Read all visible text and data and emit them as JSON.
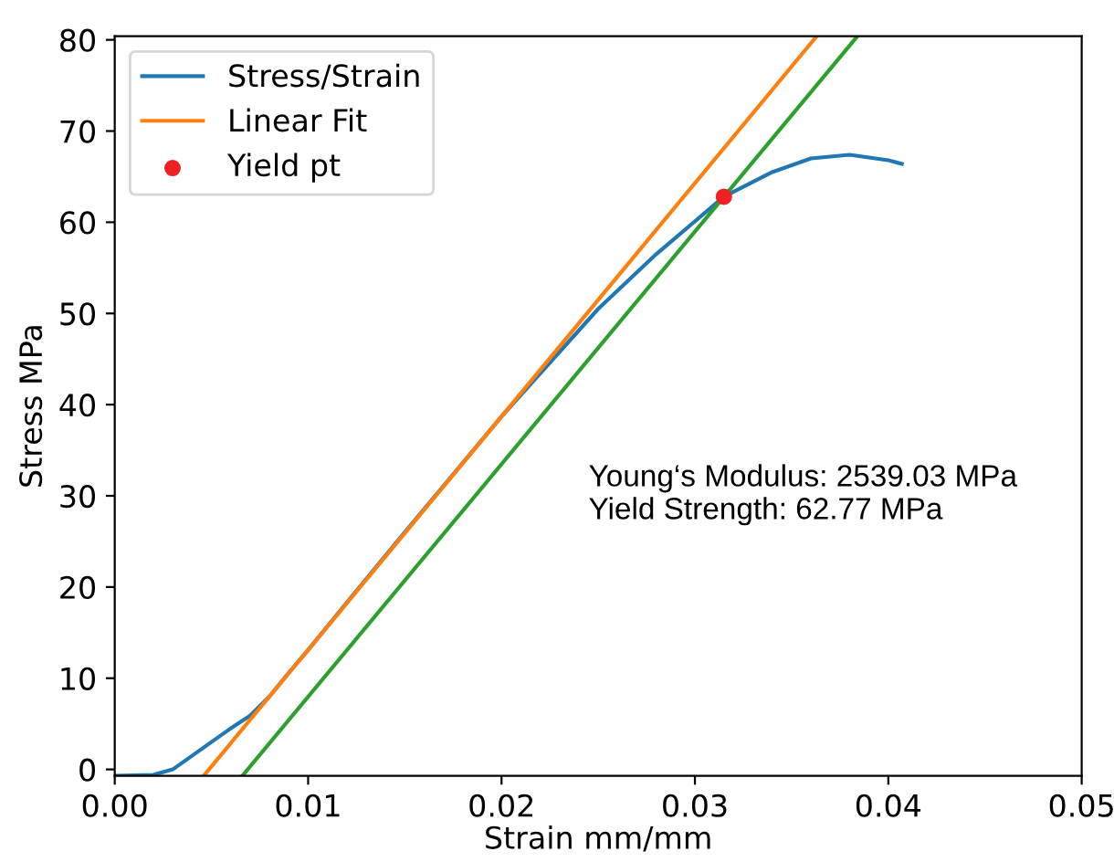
{
  "chart_data": {
    "type": "line",
    "xlabel": "Strain mm/mm",
    "ylabel": "Stress MPa",
    "xlim": [
      0,
      0.05
    ],
    "ylim": [
      -0.7,
      80.4
    ],
    "xticks": [
      {
        "value": 0,
        "label": "0.00"
      },
      {
        "value": 0.01,
        "label": "0.01"
      },
      {
        "value": 0.02,
        "label": "0.02"
      },
      {
        "value": 0.03,
        "label": "0.03"
      },
      {
        "value": 0.04,
        "label": "0.04"
      },
      {
        "value": 0.05,
        "label": "0.05"
      }
    ],
    "yticks": [
      0,
      10,
      20,
      30,
      40,
      50,
      60,
      70,
      80
    ],
    "grid": false,
    "legend": "top left",
    "series": [
      {
        "name": "Stress/Strain",
        "type": "line",
        "color": "#1f77b4",
        "x": [
          0,
          0.002,
          0.003,
          0.004,
          0.005,
          0.006,
          0.007,
          0.008,
          0.009,
          0.01,
          0.012,
          0.015,
          0.02,
          0.025,
          0.028,
          0.0315,
          0.034,
          0.036,
          0.038,
          0.04,
          0.0407
        ],
        "values": [
          -0.7,
          -0.6,
          0,
          1.5,
          3,
          4.5,
          5.9,
          8,
          10.6,
          13.1,
          18.3,
          26,
          38.7,
          50.5,
          56.5,
          62.8,
          65.5,
          67,
          67.4,
          66.8,
          66.4
        ]
      },
      {
        "name": "Linear Fit",
        "type": "line",
        "color": "#ff7f0e",
        "x": [
          0.0046,
          0.0363
        ],
        "values": [
          -0.7,
          80.4
        ]
      },
      {
        "type": "line",
        "color": "#2ca02c",
        "x": [
          0.0066,
          0.0384
        ],
        "values": [
          -0.7,
          80.4
        ]
      },
      {
        "name": "Yield pt",
        "type": "scatter",
        "color": "#ee2222",
        "marker": "circle",
        "x": [
          0.0315
        ],
        "values": [
          62.8
        ]
      }
    ],
    "annotations": [
      "Young‘s Modulus: 2539.03 MPa\nYield Strength: 62.77 MPa"
    ]
  }
}
